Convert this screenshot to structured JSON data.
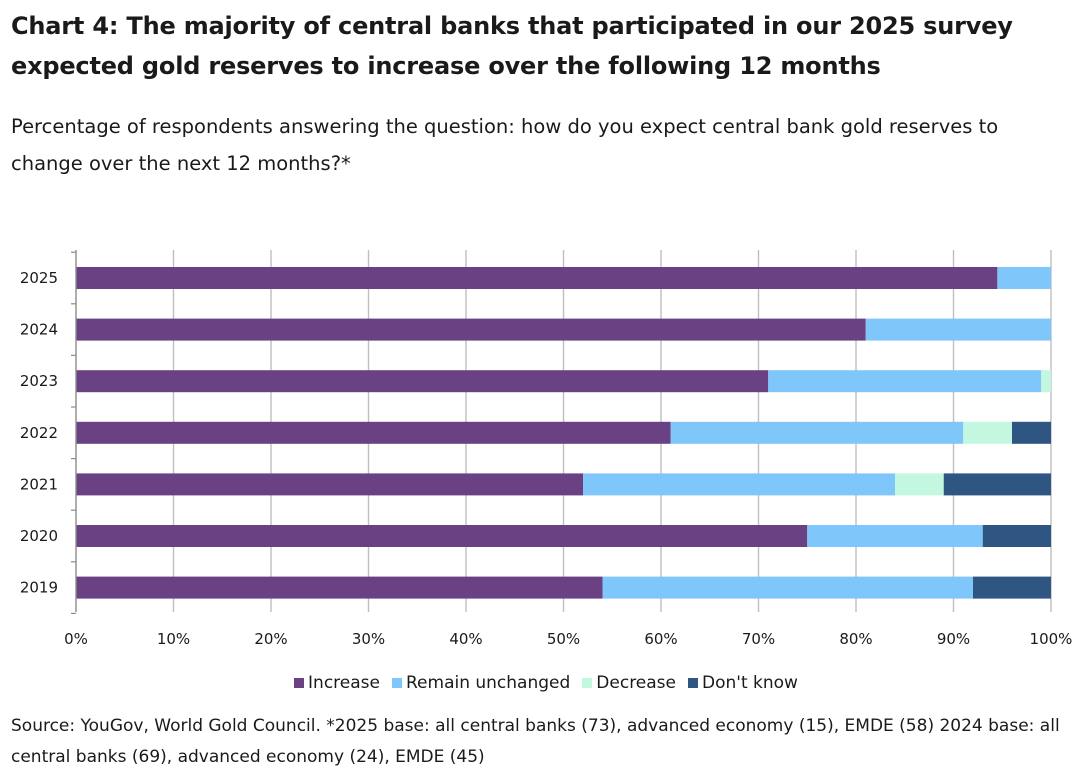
{
  "header": {
    "title": "Chart 4: The majority of central banks that participated in our 2025 survey expected gold reserves to increase over the following 12 months",
    "subtitle": "Percentage of respondents answering the question: how do you expect central bank gold reserves to change over the next 12 months?*"
  },
  "footer": {
    "source": "Source: YouGov, World Gold Council. *2025 base: all central banks (73), advanced economy (15), EMDE (58) 2024 base: all central banks (69), advanced economy (24), EMDE (45)"
  },
  "chart_data": {
    "type": "bar",
    "orientation": "horizontal",
    "stacked": true,
    "categories": [
      "2025",
      "2024",
      "2023",
      "2022",
      "2021",
      "2020",
      "2019"
    ],
    "series": [
      {
        "name": "Increase",
        "color": "#6a4283",
        "values": [
          94.5,
          81,
          71,
          61,
          52,
          75,
          54
        ]
      },
      {
        "name": "Remain unchanged",
        "color": "#7fc6fa",
        "values": [
          5.5,
          19,
          28,
          30,
          32,
          18,
          38
        ]
      },
      {
        "name": "Decrease",
        "color": "#c4f7df",
        "values": [
          0,
          0,
          1,
          5,
          5,
          0,
          0
        ]
      },
      {
        "name": "Don't know",
        "color": "#2f5582",
        "values": [
          0,
          0,
          0,
          4,
          11,
          7,
          8
        ]
      }
    ],
    "x_ticks": [
      "0%",
      "10%",
      "20%",
      "30%",
      "40%",
      "50%",
      "60%",
      "70%",
      "80%",
      "90%",
      "100%"
    ],
    "xlim": [
      0,
      100
    ],
    "grid": true,
    "legend_position": "bottom"
  }
}
